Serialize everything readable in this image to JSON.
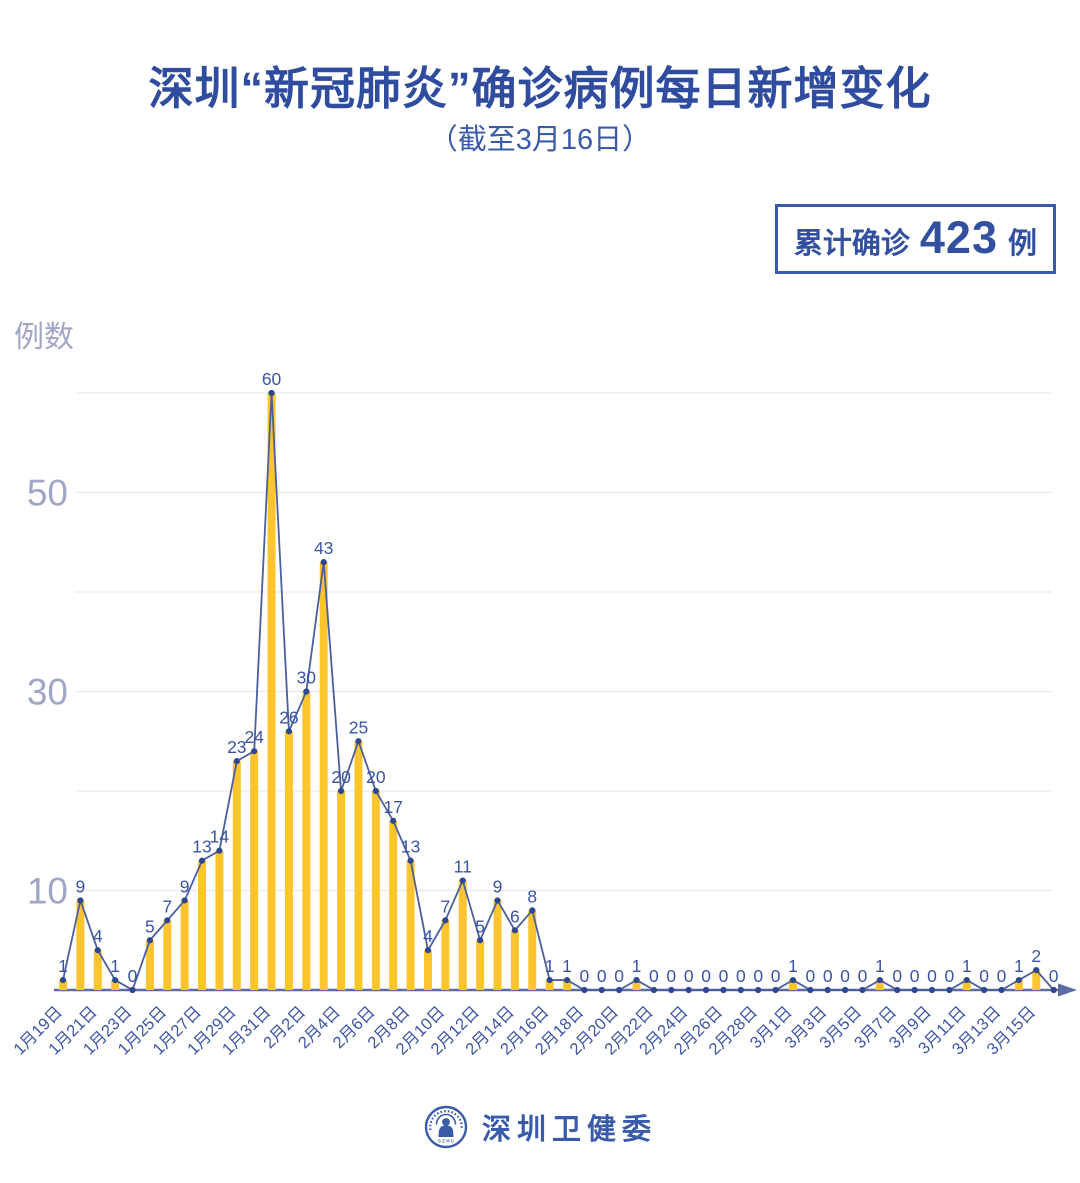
{
  "header": {
    "title": "深圳“新冠肺炎”确诊病例每日新增变化",
    "subtitle": "（截至3月16日）"
  },
  "summary_badge": {
    "prefix": "累计确诊",
    "value": "423",
    "suffix": "例"
  },
  "chart_data": {
    "type": "bar",
    "title": "深圳“新冠肺炎”确诊病例每日新增变化",
    "subtitle": "截至3月16日",
    "ylabel": "例数",
    "xlabel": "",
    "ylim": [
      0,
      60
    ],
    "grid_step": 10,
    "grid": true,
    "yticks_labeled": [
      50,
      30,
      10
    ],
    "x_tick_every": 2,
    "x_tick_labels": [
      "1月19日",
      "1月21日",
      "1月23日",
      "1月25日",
      "1月27日",
      "1月29日",
      "1月31日",
      "2月2日",
      "2月4日",
      "2月6日",
      "2月8日",
      "2月10日",
      "2月12日",
      "2月14日",
      "2月16日",
      "2月18日",
      "2月20日",
      "2月22日",
      "2月24日",
      "2月26日",
      "2月28日",
      "3月1日",
      "3月3日",
      "3月5日",
      "3月7日",
      "3月9日",
      "3月11日",
      "3月13日",
      "3月15日"
    ],
    "values": [
      1,
      9,
      4,
      1,
      0,
      5,
      7,
      9,
      13,
      14,
      23,
      24,
      60,
      26,
      30,
      43,
      20,
      25,
      20,
      17,
      13,
      4,
      7,
      11,
      5,
      9,
      6,
      8,
      1,
      1,
      0,
      0,
      0,
      1,
      0,
      0,
      0,
      0,
      0,
      0,
      0,
      0,
      1,
      0,
      0,
      0,
      0,
      1,
      0,
      0,
      0,
      0,
      1,
      0,
      0,
      1,
      2,
      0
    ],
    "point_labels_visible": true,
    "cumulative_total": 423,
    "colors": {
      "bar": "#FCC42D",
      "line": "#4A5F9E",
      "dot": "#2D4890",
      "point_label": "#3B54A5",
      "date_label": "#3D55A5",
      "axis": "#5C6BA4",
      "grid": "#E9EAF1",
      "ytick": "#9FA6C6",
      "title_blue": "#2F4C9E",
      "badge_blue": "#3A5BA9"
    }
  },
  "footer": {
    "brand": "深圳卫健委",
    "logo": "shenzhen-health-commission-seal"
  }
}
